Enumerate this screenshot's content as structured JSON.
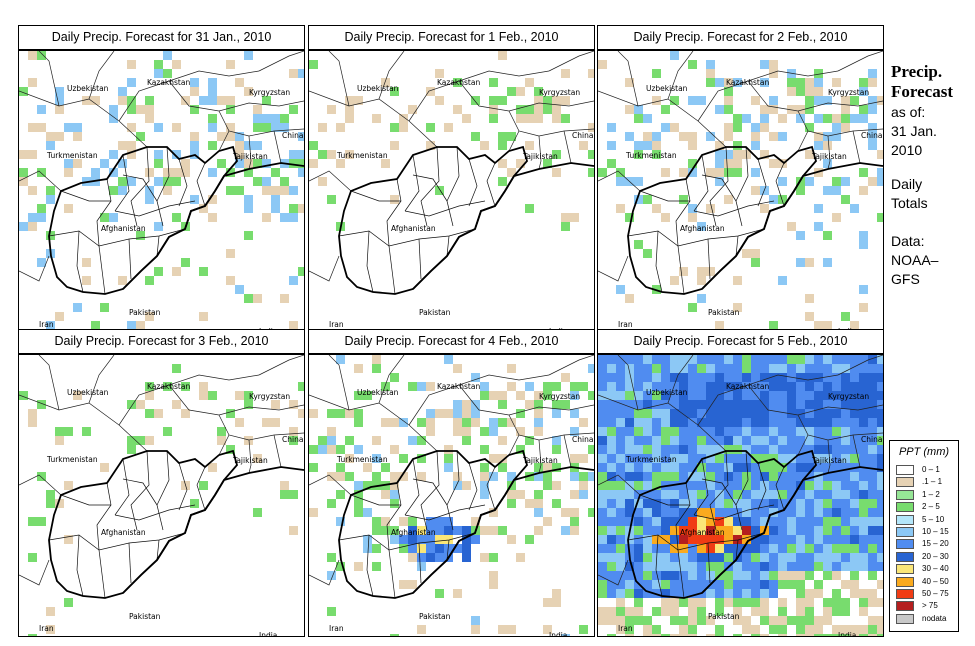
{
  "panels": [
    {
      "title": "Daily Precip. Forecast for  31 Jan., 2010",
      "intensity": 1
    },
    {
      "title": "Daily Precip. Forecast for  1 Feb., 2010",
      "intensity": 0
    },
    {
      "title": "Daily Precip. Forecast for  2 Feb., 2010",
      "intensity": 1
    },
    {
      "title": "Daily Precip. Forecast for  3 Feb., 2010",
      "intensity": 0
    },
    {
      "title": "Daily Precip. Forecast for  4 Feb., 2010",
      "intensity": 2
    },
    {
      "title": "Daily Precip. Forecast for  5 Feb., 2010",
      "intensity": 3
    }
  ],
  "countries": {
    "uzbekistan": "Uzbekistan",
    "kazakhstan": "Kazakhstan",
    "kyrgyzstan": "Kyrgyzstan",
    "china": "China",
    "turkmenistan": "Turkmenistan",
    "tajikistan": "Tajikistan",
    "afghanistan": "Afghanistan",
    "pakistan": "Pakistan",
    "iran": "Iran",
    "india": "India"
  },
  "sidebar": {
    "title_line1": "Precip.",
    "title_line2": "Forecast",
    "asof_line1": "as of:",
    "asof_line2": "31 Jan.",
    "asof_line3": "2010",
    "totals_line1": "Daily",
    "totals_line2": "Totals",
    "source_line1": "Data:",
    "source_line2": "NOAA–",
    "source_line3": "GFS"
  },
  "legend": {
    "title": "PPT (mm)",
    "items": [
      {
        "label": "0 – 1",
        "color": "#ffffff"
      },
      {
        "label": ".1 – 1",
        "color": "#e6d2b4"
      },
      {
        "label": "1 – 2",
        "color": "#96e696"
      },
      {
        "label": "2 – 5",
        "color": "#78dc6e"
      },
      {
        "label": "5 – 10",
        "color": "#b4e6fa"
      },
      {
        "label": "10 – 15",
        "color": "#8cc8f5"
      },
      {
        "label": "15 – 20",
        "color": "#508cf0"
      },
      {
        "label": "20 – 30",
        "color": "#2864d2"
      },
      {
        "label": "30 – 40",
        "color": "#fae678"
      },
      {
        "label": "40 – 50",
        "color": "#faaa1e"
      },
      {
        "label": "50 – 75",
        "color": "#f03c14"
      },
      {
        "label": "> 75",
        "color": "#b41e1e"
      },
      {
        "label": "nodata",
        "color": "#c8c8c8"
      }
    ]
  }
}
